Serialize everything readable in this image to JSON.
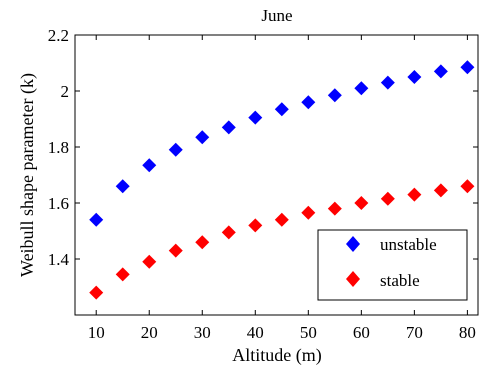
{
  "chart_data": {
    "type": "scatter",
    "title": "June",
    "xlabel": "Altitude (m)",
    "ylabel": "Weibull shape parameter (k)",
    "xlim": [
      6,
      82
    ],
    "ylim": [
      1.2,
      2.2
    ],
    "xticks": [
      10,
      20,
      30,
      40,
      50,
      60,
      70,
      80
    ],
    "xtick_labels": [
      "10",
      "20",
      "30",
      "40",
      "50",
      "60",
      "70",
      "80"
    ],
    "yticks": [
      1.4,
      1.6,
      1.8,
      2.0,
      2.2
    ],
    "ytick_labels": [
      "1.4",
      "1.6",
      "1.8",
      "2",
      "2.2"
    ],
    "grid": false,
    "legend_position": "bottom-right",
    "marker": "diamond",
    "x": [
      10,
      15,
      20,
      25,
      30,
      35,
      40,
      45,
      50,
      55,
      60,
      65,
      70,
      75,
      80
    ],
    "series": [
      {
        "name": "unstable",
        "color": "#0000ff",
        "values": [
          1.54,
          1.66,
          1.735,
          1.79,
          1.835,
          1.87,
          1.905,
          1.935,
          1.96,
          1.985,
          2.01,
          2.03,
          2.05,
          2.07,
          2.085
        ]
      },
      {
        "name": "stable",
        "color": "#ff0000",
        "values": [
          1.28,
          1.345,
          1.39,
          1.43,
          1.46,
          1.495,
          1.52,
          1.54,
          1.565,
          1.58,
          1.6,
          1.615,
          1.63,
          1.645,
          1.66
        ]
      }
    ]
  }
}
